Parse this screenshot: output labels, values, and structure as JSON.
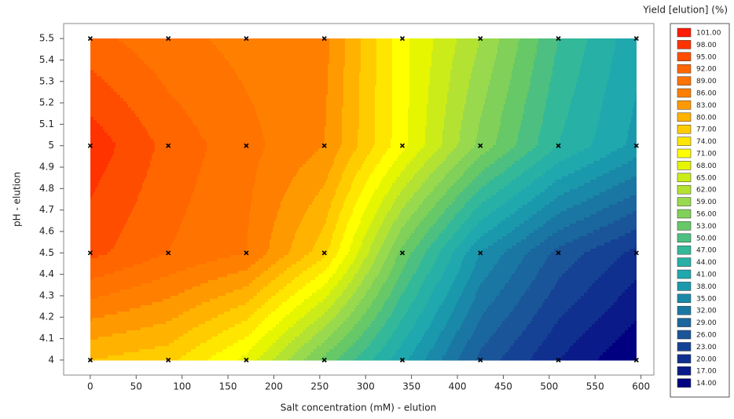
{
  "chart_data": {
    "type": "contour",
    "x_label": "Salt concentration (mM) - elution",
    "y_label": "pH - elution",
    "legend_title": "Yield [elution] (%)",
    "x": [
      0,
      85,
      170,
      255,
      340,
      425,
      510,
      595
    ],
    "y": [
      4,
      4.5,
      5,
      5.5
    ],
    "z": [
      [
        80,
        78,
        70,
        55,
        42,
        28,
        20,
        14
      ],
      [
        96,
        92,
        89,
        78,
        55,
        38,
        28,
        22
      ],
      [
        100,
        94,
        90,
        86,
        72,
        58,
        47,
        40
      ],
      [
        93,
        90,
        88,
        87,
        72,
        62,
        50,
        42
      ]
    ],
    "xlim": [
      -29,
      614
    ],
    "ylim": [
      3.93,
      5.57
    ],
    "xticks": [
      0,
      50,
      100,
      150,
      200,
      250,
      300,
      350,
      400,
      450,
      500,
      550,
      600
    ],
    "yticks": [
      4,
      4.1,
      4.2,
      4.3,
      4.4,
      4.5,
      4.6,
      4.7,
      4.8,
      4.9,
      5,
      5.1,
      5.2,
      5.3,
      5.4,
      5.5
    ],
    "levels": [
      {
        "value": 101,
        "label": "101.00"
      },
      {
        "value": 98,
        "label": "98.00"
      },
      {
        "value": 95,
        "label": "95.00"
      },
      {
        "value": 92,
        "label": "92.00"
      },
      {
        "value": 89,
        "label": "89.00"
      },
      {
        "value": 86,
        "label": "86.00"
      },
      {
        "value": 83,
        "label": "83.00"
      },
      {
        "value": 80,
        "label": "80.00"
      },
      {
        "value": 77,
        "label": "77.00"
      },
      {
        "value": 74,
        "label": "74.00"
      },
      {
        "value": 71,
        "label": "71.00"
      },
      {
        "value": 68,
        "label": "68.00"
      },
      {
        "value": 65,
        "label": "65.00"
      },
      {
        "value": 62,
        "label": "62.00"
      },
      {
        "value": 59,
        "label": "59.00"
      },
      {
        "value": 56,
        "label": "56.00"
      },
      {
        "value": 53,
        "label": "53.00"
      },
      {
        "value": 50,
        "label": "50.00"
      },
      {
        "value": 47,
        "label": "47.00"
      },
      {
        "value": 44,
        "label": "44.00"
      },
      {
        "value": 41,
        "label": "41.00"
      },
      {
        "value": 38,
        "label": "38.00"
      },
      {
        "value": 35,
        "label": "35.00"
      },
      {
        "value": 32,
        "label": "32.00"
      },
      {
        "value": 29,
        "label": "29.00"
      },
      {
        "value": 26,
        "label": "26.00"
      },
      {
        "value": 23,
        "label": "23.00"
      },
      {
        "value": 20,
        "label": "20.00"
      },
      {
        "value": 17,
        "label": "17.00"
      },
      {
        "value": 14,
        "label": "14.00"
      }
    ],
    "colors": [
      "#ff1a00",
      "#ff3300",
      "#ff4d00",
      "#ff6600",
      "#ff7300",
      "#ff8000",
      "#ff9900",
      "#ffb300",
      "#ffcc00",
      "#ffe600",
      "#ffff00",
      "#e6f500",
      "#ccec1a",
      "#b3e233",
      "#99d94d",
      "#80d05a",
      "#66c866",
      "#4dbf80",
      "#33b899",
      "#26b0a6",
      "#1fa8ad",
      "#1a99ad",
      "#1a88a8",
      "#1a77a3",
      "#1a669e",
      "#1a5599",
      "#154294",
      "#10308f",
      "#0a1a88",
      "#000080"
    ],
    "marker_color": "#000000"
  }
}
